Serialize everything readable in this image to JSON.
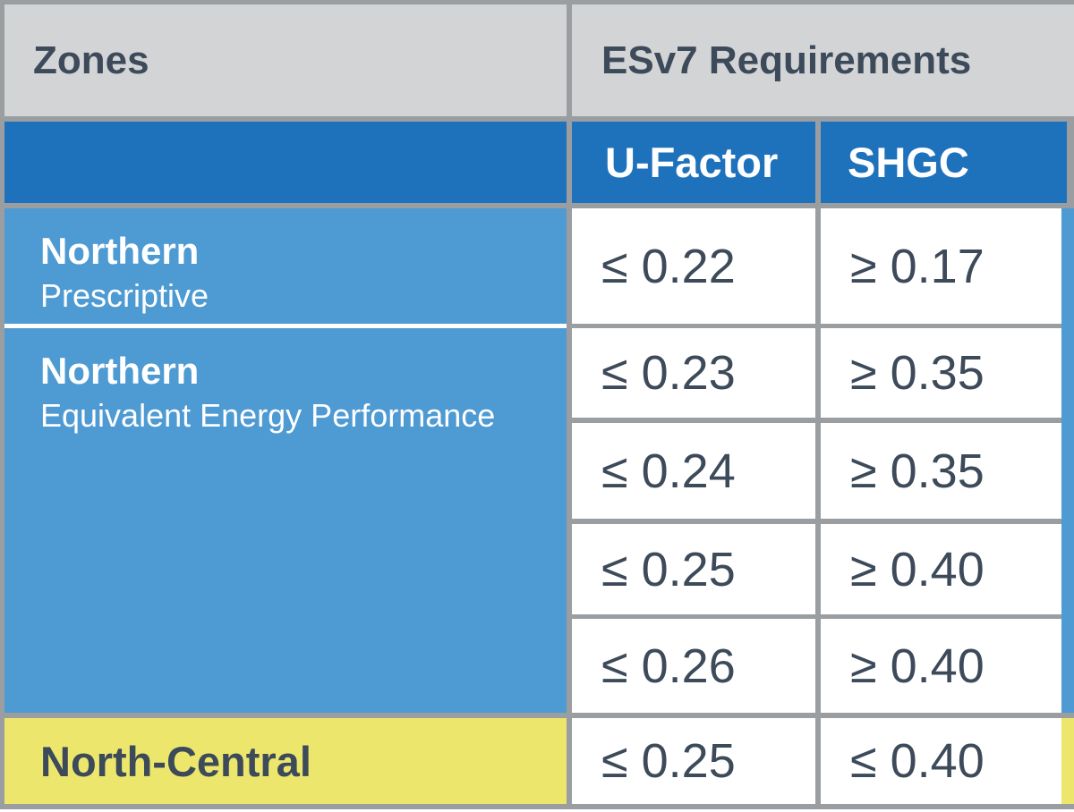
{
  "colors": {
    "header_gray": "#d2d4d6",
    "border_gray": "#9b9ea1",
    "dark_blue": "#1e72bc",
    "light_blue": "#4e9ad3",
    "yellow": "#ece76c",
    "text_slate": "#3d4a5a",
    "cell_white": "#ffffff"
  },
  "table": {
    "zones_header": "Zones",
    "requirements_header": "ESv7 Requirements",
    "metric_headers": {
      "u_factor": "U-Factor",
      "shgc": "SHGC"
    },
    "zones": [
      {
        "name": "Northern",
        "qualifier": "Prescriptive"
      },
      {
        "name": "Northern",
        "qualifier": "Equivalent Energy Performance"
      },
      {
        "name": "North-Central",
        "qualifier": ""
      }
    ],
    "rows": [
      {
        "u_factor": "≤ 0.22",
        "shgc": "≥ 0.17"
      },
      {
        "u_factor": "≤ 0.23",
        "shgc": "≥ 0.35"
      },
      {
        "u_factor": "≤ 0.24",
        "shgc": "≥ 0.35"
      },
      {
        "u_factor": "≤ 0.25",
        "shgc": "≥ 0.40"
      },
      {
        "u_factor": "≤ 0.26",
        "shgc": "≥ 0.40"
      },
      {
        "u_factor": "≤ 0.25",
        "shgc": "≤ 0.40"
      }
    ]
  },
  "chart_data": {
    "type": "table",
    "title": "ESv7 Requirements",
    "columns": [
      "Zones",
      "U-Factor",
      "SHGC"
    ],
    "rows": [
      [
        "Northern — Prescriptive",
        "≤ 0.22",
        "≥ 0.17"
      ],
      [
        "Northern — Equivalent Energy Performance",
        "≤ 0.23",
        "≥ 0.35"
      ],
      [
        "Northern — Equivalent Energy Performance",
        "≤ 0.24",
        "≥ 0.35"
      ],
      [
        "Northern — Equivalent Energy Performance",
        "≤ 0.25",
        "≥ 0.40"
      ],
      [
        "Northern — Equivalent Energy Performance",
        "≤ 0.26",
        "≥ 0.40"
      ],
      [
        "North-Central",
        "≤ 0.25",
        "≤ 0.40"
      ]
    ],
    "layout_hints": {
      "zone_cell_merge": "Northern Equivalent Energy Performance spans value rows 2-5",
      "right_accent_strip": "cropped next column: blue beside Northern rows, yellow beside North-Central"
    }
  }
}
